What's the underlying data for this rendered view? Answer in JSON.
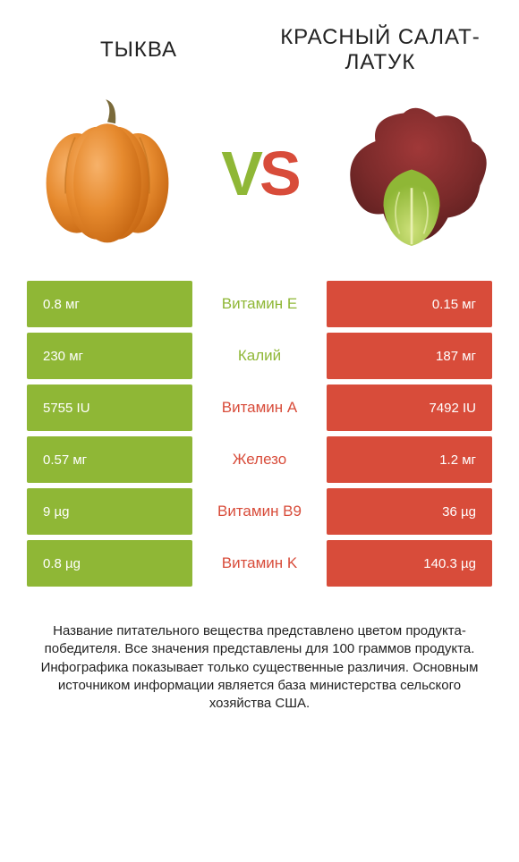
{
  "colors": {
    "left_bar": "#8fb736",
    "right_bar": "#d84c3a",
    "winner_left_text": "#8fb736",
    "winner_right_text": "#d84c3a",
    "vs_v": "#8fb736",
    "vs_s": "#d84c3a"
  },
  "foods": {
    "left": {
      "title": "ТЫКВА"
    },
    "right": {
      "title": "КРАСНЫЙ САЛАТ-ЛАТУК"
    }
  },
  "vs": {
    "v": "V",
    "s": "S"
  },
  "nutrients": [
    {
      "name": "Витамин E",
      "left": "0.8 мг",
      "right": "0.15 мг",
      "winner": "left"
    },
    {
      "name": "Калий",
      "left": "230 мг",
      "right": "187 мг",
      "winner": "left"
    },
    {
      "name": "Витамин A",
      "left": "5755 IU",
      "right": "7492 IU",
      "winner": "right"
    },
    {
      "name": "Железо",
      "left": "0.57 мг",
      "right": "1.2 мг",
      "winner": "right"
    },
    {
      "name": "Витамин B9",
      "left": "9 µg",
      "right": "36 µg",
      "winner": "right"
    },
    {
      "name": "Витамин K",
      "left": "0.8 µg",
      "right": "140.3 µg",
      "winner": "right"
    }
  ],
  "footer": "Название питательного вещества представлено цветом продукта-победителя.\nВсе значения представлены для 100 граммов продукта. Инфографика показывает только существенные различия. Основным источником информации является база министерства сельского хозяйства США."
}
